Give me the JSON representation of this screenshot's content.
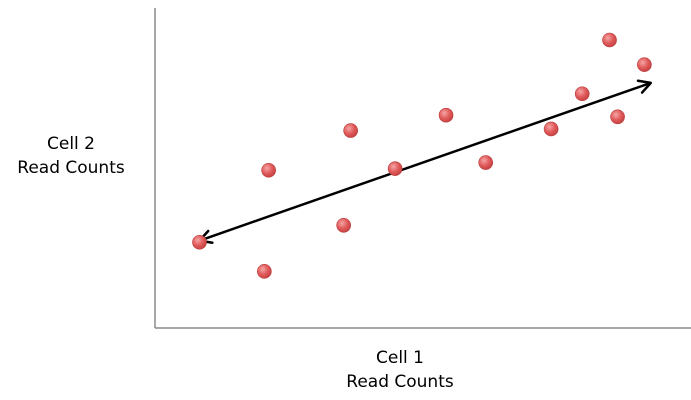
{
  "chart_data": {
    "type": "scatter",
    "title": "",
    "xlabel_lines": [
      "Cell 1",
      "Read Counts"
    ],
    "ylabel_lines": [
      "Cell 2",
      "Read Counts"
    ],
    "xlim": [
      0,
      100
    ],
    "ylim": [
      0,
      100
    ],
    "grid": false,
    "legend": "none",
    "point_color": "#e05a5a",
    "series": [
      {
        "points": [
          {
            "x": 8.3,
            "y": 26.8
          },
          {
            "x": 20.4,
            "y": 17.7
          },
          {
            "x": 21.2,
            "y": 49.3
          },
          {
            "x": 35.2,
            "y": 32.1
          },
          {
            "x": 36.5,
            "y": 61.7
          },
          {
            "x": 44.8,
            "y": 49.8
          },
          {
            "x": 54.3,
            "y": 66.5
          },
          {
            "x": 61.7,
            "y": 51.7
          },
          {
            "x": 73.9,
            "y": 62.2
          },
          {
            "x": 79.7,
            "y": 73.2
          },
          {
            "x": 84.8,
            "y": 90.0
          },
          {
            "x": 86.3,
            "y": 66.0
          },
          {
            "x": 91.3,
            "y": 82.3
          }
        ]
      }
    ],
    "trend_arrow": {
      "x1": 8.3,
      "y1": 27.3,
      "x2": 92.5,
      "y2": 76.6,
      "double_headed": true,
      "color": "#000000"
    }
  }
}
